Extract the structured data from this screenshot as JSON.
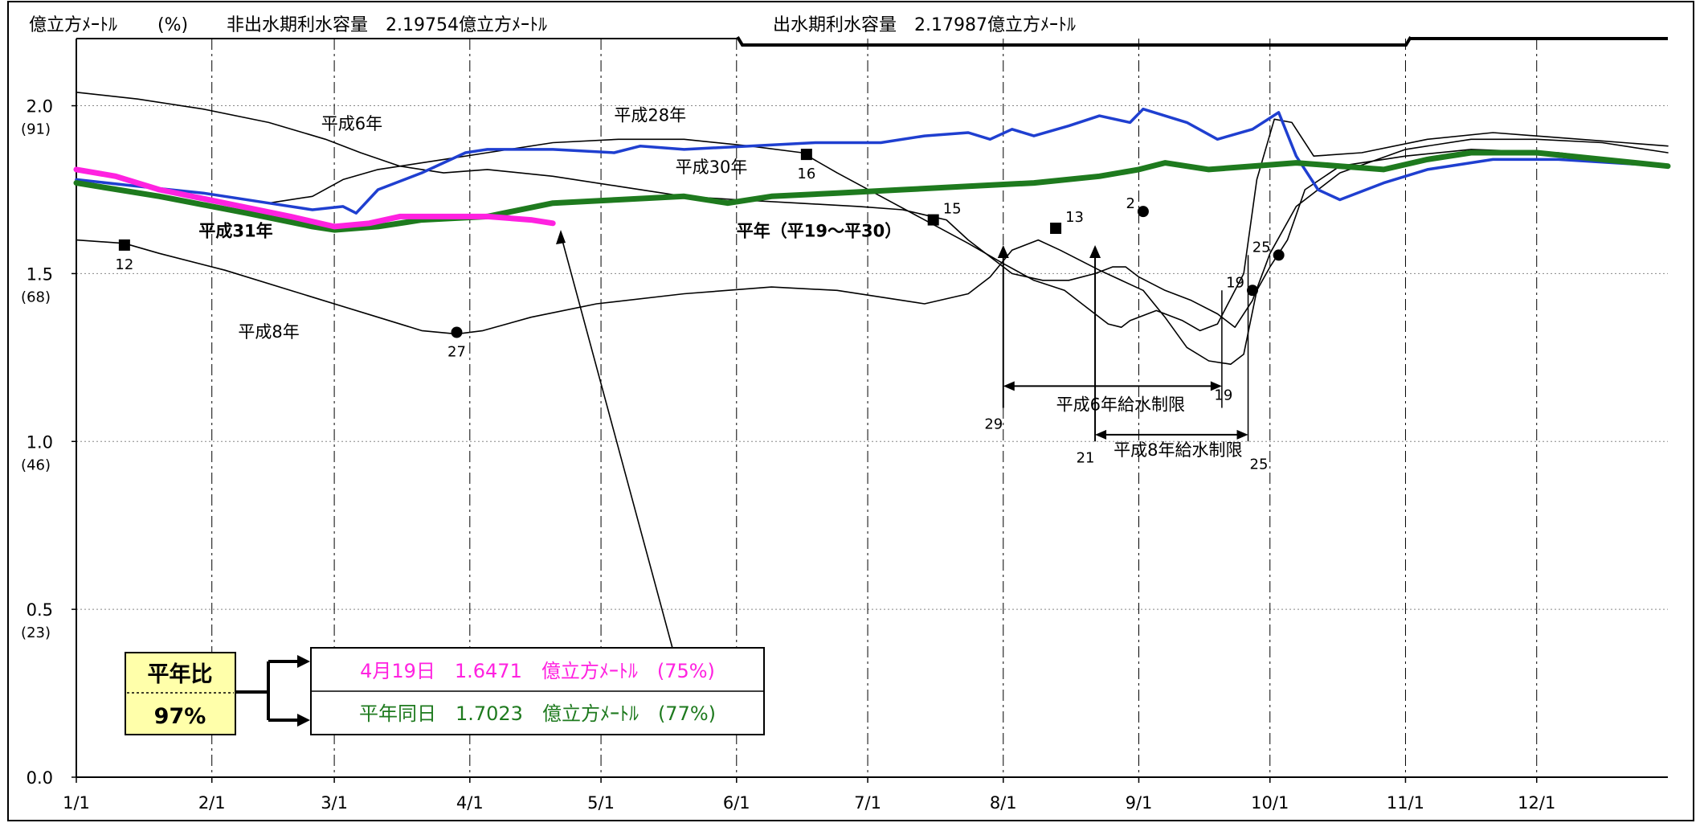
{
  "header": {
    "unit_left": "億立方ﾒｰﾄﾙ",
    "unit_percent": "(%)",
    "non_flood_capacity": "非出水期利水容量　2.19754億立方ﾒｰﾄﾙ",
    "flood_capacity": "出水期利水容量　2.17987億立方ﾒｰﾄﾙ"
  },
  "chart_data": {
    "type": "line",
    "xlabel": "",
    "ylabel": "億立方ﾒｰﾄﾙ",
    "x_ticks": [
      "1/1",
      "2/1",
      "3/1",
      "4/1",
      "5/1",
      "6/1",
      "7/1",
      "8/1",
      "9/1",
      "10/1",
      "11/1",
      "12/1"
    ],
    "x_tick_days": [
      1,
      32,
      60,
      91,
      121,
      152,
      182,
      213,
      244,
      274,
      305,
      335
    ],
    "y_ticks": [
      "2.0",
      "1.5",
      "1.0",
      "0.5",
      "0.0"
    ],
    "y_tick_values": [
      2.0,
      1.5,
      1.0,
      0.5,
      0.0
    ],
    "y_ticks_percent": [
      "(91)",
      "(68)",
      "(46)",
      "(23)"
    ],
    "xlim": [
      1,
      365
    ],
    "ylim": [
      0,
      2.2
    ],
    "grid": true,
    "series": [
      {
        "name": "平成6年",
        "color": "#000000",
        "width": 1.6,
        "points": [
          [
            1,
            2.04
          ],
          [
            15,
            2.02
          ],
          [
            30,
            1.99
          ],
          [
            45,
            1.95
          ],
          [
            58,
            1.9
          ],
          [
            66,
            1.86
          ],
          [
            75,
            1.82
          ],
          [
            85,
            1.8
          ],
          [
            95,
            1.81
          ],
          [
            110,
            1.79
          ],
          [
            125,
            1.76
          ],
          [
            140,
            1.73
          ],
          [
            152,
            1.72
          ],
          [
            166,
            1.71
          ],
          [
            180,
            1.7
          ],
          [
            190,
            1.69
          ],
          [
            200,
            1.66
          ],
          [
            205,
            1.6
          ],
          [
            210,
            1.55
          ],
          [
            215,
            1.5
          ],
          [
            222,
            1.48
          ],
          [
            228,
            1.48
          ],
          [
            234,
            1.5
          ],
          [
            238,
            1.52
          ],
          [
            241,
            1.52
          ],
          [
            244,
            1.49
          ],
          [
            250,
            1.45
          ],
          [
            256,
            1.42
          ],
          [
            262,
            1.38
          ],
          [
            266,
            1.34
          ],
          [
            270,
            1.42
          ],
          [
            274,
            1.56
          ],
          [
            280,
            1.7
          ],
          [
            290,
            1.8
          ],
          [
            305,
            1.87
          ],
          [
            320,
            1.9
          ],
          [
            335,
            1.9
          ],
          [
            350,
            1.89
          ],
          [
            365,
            1.86
          ]
        ]
      },
      {
        "name": "平成8年",
        "color": "#000000",
        "width": 1.6,
        "points": [
          [
            1,
            1.6
          ],
          [
            12,
            1.59
          ],
          [
            20,
            1.56
          ],
          [
            35,
            1.51
          ],
          [
            55,
            1.43
          ],
          [
            70,
            1.37
          ],
          [
            80,
            1.33
          ],
          [
            88,
            1.32
          ],
          [
            94,
            1.33
          ],
          [
            105,
            1.37
          ],
          [
            120,
            1.41
          ],
          [
            140,
            1.44
          ],
          [
            160,
            1.46
          ],
          [
            175,
            1.45
          ],
          [
            190,
            1.42
          ],
          [
            195,
            1.41
          ],
          [
            205,
            1.44
          ],
          [
            210,
            1.49
          ],
          [
            215,
            1.57
          ],
          [
            221,
            1.6
          ],
          [
            226,
            1.57
          ],
          [
            235,
            1.51
          ],
          [
            245,
            1.45
          ],
          [
            250,
            1.37
          ],
          [
            255,
            1.28
          ],
          [
            260,
            1.24
          ],
          [
            265,
            1.23
          ],
          [
            268,
            1.26
          ],
          [
            271,
            1.45
          ],
          [
            274,
            1.52
          ],
          [
            278,
            1.6
          ],
          [
            282,
            1.75
          ],
          [
            290,
            1.82
          ],
          [
            305,
            1.85
          ],
          [
            320,
            1.87
          ],
          [
            340,
            1.86
          ],
          [
            365,
            1.82
          ]
        ]
      },
      {
        "name": "平成28年",
        "color": "#000000",
        "width": 1.6,
        "points": [
          [
            1,
            1.78
          ],
          [
            15,
            1.76
          ],
          [
            30,
            1.74
          ],
          [
            45,
            1.71
          ],
          [
            55,
            1.73
          ],
          [
            62,
            1.78
          ],
          [
            70,
            1.81
          ],
          [
            85,
            1.84
          ],
          [
            95,
            1.86
          ],
          [
            110,
            1.89
          ],
          [
            125,
            1.9
          ],
          [
            140,
            1.9
          ],
          [
            155,
            1.88
          ],
          [
            167,
            1.86
          ],
          [
            175,
            1.8
          ],
          [
            185,
            1.73
          ],
          [
            195,
            1.66
          ],
          [
            205,
            1.59
          ],
          [
            213,
            1.53
          ],
          [
            220,
            1.48
          ],
          [
            227,
            1.45
          ],
          [
            232,
            1.4
          ],
          [
            237,
            1.35
          ],
          [
            240,
            1.34
          ],
          [
            242,
            1.36
          ],
          [
            248,
            1.39
          ],
          [
            254,
            1.36
          ],
          [
            258,
            1.33
          ],
          [
            262,
            1.35
          ],
          [
            268,
            1.5
          ],
          [
            271,
            1.78
          ],
          [
            275,
            1.96
          ],
          [
            279,
            1.95
          ],
          [
            284,
            1.85
          ],
          [
            295,
            1.86
          ],
          [
            310,
            1.9
          ],
          [
            325,
            1.92
          ],
          [
            345,
            1.9
          ],
          [
            365,
            1.88
          ]
        ]
      },
      {
        "name": "平成30年",
        "color": "#1f3fd0",
        "width": 3.5,
        "points": [
          [
            1,
            1.78
          ],
          [
            15,
            1.76
          ],
          [
            30,
            1.74
          ],
          [
            45,
            1.71
          ],
          [
            55,
            1.69
          ],
          [
            62,
            1.7
          ],
          [
            65,
            1.68
          ],
          [
            70,
            1.75
          ],
          [
            80,
            1.8
          ],
          [
            90,
            1.86
          ],
          [
            95,
            1.87
          ],
          [
            110,
            1.87
          ],
          [
            124,
            1.86
          ],
          [
            130,
            1.88
          ],
          [
            140,
            1.87
          ],
          [
            155,
            1.88
          ],
          [
            170,
            1.89
          ],
          [
            185,
            1.89
          ],
          [
            195,
            1.91
          ],
          [
            205,
            1.92
          ],
          [
            210,
            1.9
          ],
          [
            215,
            1.93
          ],
          [
            220,
            1.91
          ],
          [
            228,
            1.94
          ],
          [
            235,
            1.97
          ],
          [
            242,
            1.95
          ],
          [
            245,
            1.99
          ],
          [
            255,
            1.95
          ],
          [
            262,
            1.9
          ],
          [
            270,
            1.93
          ],
          [
            276,
            1.98
          ],
          [
            280,
            1.85
          ],
          [
            285,
            1.75
          ],
          [
            290,
            1.72
          ],
          [
            300,
            1.77
          ],
          [
            310,
            1.81
          ],
          [
            325,
            1.84
          ],
          [
            340,
            1.84
          ],
          [
            365,
            1.82
          ]
        ]
      },
      {
        "name": "平年（平19～平30）",
        "color": "#1e7a1e",
        "width": 7,
        "points": [
          [
            1,
            1.77
          ],
          [
            20,
            1.73
          ],
          [
            40,
            1.68
          ],
          [
            55,
            1.64
          ],
          [
            60,
            1.63
          ],
          [
            70,
            1.64
          ],
          [
            80,
            1.66
          ],
          [
            95,
            1.67
          ],
          [
            110,
            1.71
          ],
          [
            125,
            1.72
          ],
          [
            140,
            1.73
          ],
          [
            150,
            1.71
          ],
          [
            160,
            1.73
          ],
          [
            175,
            1.74
          ],
          [
            190,
            1.75
          ],
          [
            205,
            1.76
          ],
          [
            220,
            1.77
          ],
          [
            235,
            1.79
          ],
          [
            244,
            1.81
          ],
          [
            250,
            1.83
          ],
          [
            260,
            1.81
          ],
          [
            270,
            1.82
          ],
          [
            280,
            1.83
          ],
          [
            290,
            1.82
          ],
          [
            300,
            1.81
          ],
          [
            310,
            1.84
          ],
          [
            320,
            1.86
          ],
          [
            335,
            1.86
          ],
          [
            365,
            1.82
          ]
        ]
      },
      {
        "name": "平成31年",
        "color": "#ff22e0",
        "width": 7,
        "points": [
          [
            1,
            1.81
          ],
          [
            10,
            1.79
          ],
          [
            20,
            1.75
          ],
          [
            35,
            1.71
          ],
          [
            50,
            1.67
          ],
          [
            60,
            1.64
          ],
          [
            68,
            1.65
          ],
          [
            75,
            1.67
          ],
          [
            85,
            1.67
          ],
          [
            95,
            1.67
          ],
          [
            105,
            1.66
          ],
          [
            110,
            1.65
          ]
        ]
      }
    ],
    "markers": [
      {
        "shape": "square",
        "day": 12,
        "value": 1.585,
        "label": "12",
        "label_pos": "below"
      },
      {
        "shape": "circle",
        "day": 88,
        "value": 1.325,
        "label": "27",
        "label_pos": "below"
      },
      {
        "shape": "square",
        "day": 168,
        "value": 1.855,
        "label": "16",
        "label_pos": "below"
      },
      {
        "shape": "square",
        "day": 197,
        "value": 1.66,
        "label": "15",
        "label_pos": "right"
      },
      {
        "shape": "square",
        "day": 225,
        "value": 1.635,
        "label": "13",
        "label_pos": "right"
      },
      {
        "shape": "circle",
        "day": 245,
        "value": 1.685,
        "label": "2",
        "label_pos": "left"
      },
      {
        "shape": "circle",
        "day": 270,
        "value": 1.45,
        "label": "19",
        "label_pos": "left"
      },
      {
        "shape": "circle",
        "day": 276,
        "value": 1.555,
        "label": "25",
        "label_pos": "left"
      }
    ],
    "annotations": [
      {
        "text": "平成6年",
        "day": 57,
        "value": 1.93,
        "color": "#000000"
      },
      {
        "text": "平成28年",
        "day": 124,
        "value": 1.955,
        "color": "#000000"
      },
      {
        "text": "平成30年",
        "day": 138,
        "value": 1.8,
        "color": "#1f3fd0"
      },
      {
        "text": "平成31年",
        "day": 29,
        "value": 1.61,
        "color": "#ff22e0",
        "bold": true
      },
      {
        "text": "平年（平19～平30）",
        "day": 152,
        "value": 1.61,
        "color": "#1e7a1e",
        "bold": true
      },
      {
        "text": "平成8年",
        "day": 38,
        "value": 1.31,
        "color": "#000000"
      }
    ],
    "restrictions": [
      {
        "label": "平成6年給水制限",
        "start_day": 213,
        "end_day": 263,
        "start_label": "29",
        "end_label": "19"
      },
      {
        "label": "平成8年給水制限",
        "start_day": 234,
        "end_day": 269,
        "start_label": "21",
        "end_label": "25"
      }
    ]
  },
  "comparison": {
    "ratio_label": "平年比",
    "ratio_value": "97%",
    "current_row": "4月19日　1.6471　億立方ﾒｰﾄﾙ　(75%)",
    "normal_row": "平年同日　1.7023　億立方ﾒｰﾄﾙ　(77%)",
    "current_color": "#ff22e0",
    "normal_color": "#1e7a1e",
    "ratio_bg": "#ffffaa"
  }
}
